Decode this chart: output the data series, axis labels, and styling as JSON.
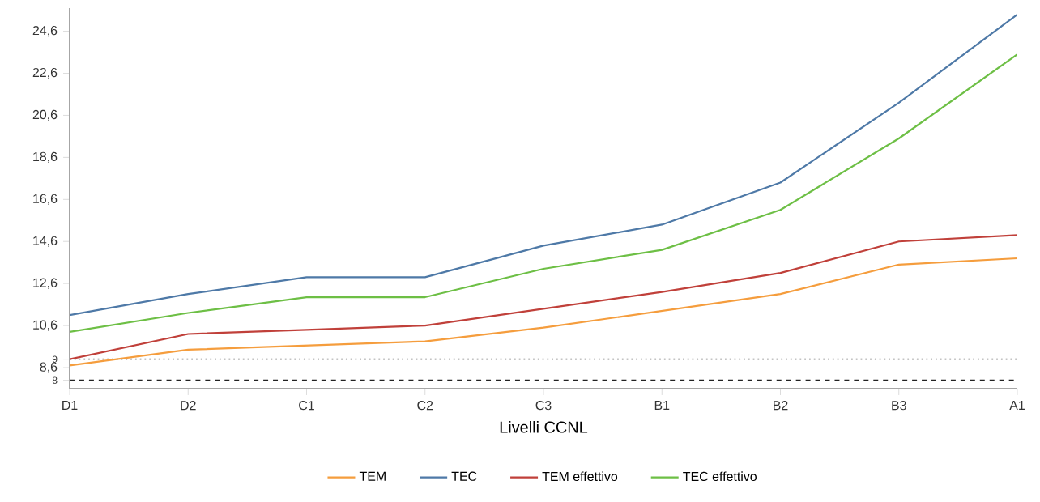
{
  "chart_data": {
    "type": "line",
    "xlabel": "Livelli CCNL",
    "categories": [
      "D1",
      "D2",
      "C1",
      "C2",
      "C3",
      "B1",
      "B2",
      "B3",
      "A1"
    ],
    "series": [
      {
        "name": "TEM",
        "color": "#f59d3d",
        "values": [
          8.7,
          9.45,
          9.65,
          9.85,
          10.5,
          11.3,
          12.1,
          13.5,
          13.8
        ]
      },
      {
        "name": "TEC",
        "color": "#4e79a7",
        "values": [
          11.1,
          12.1,
          12.9,
          12.9,
          14.4,
          15.4,
          17.4,
          21.2,
          25.4
        ]
      },
      {
        "name": "TEM effettivo",
        "color": "#c0403a",
        "values": [
          9.0,
          10.2,
          10.4,
          10.6,
          11.4,
          12.2,
          13.1,
          14.6,
          14.9
        ]
      },
      {
        "name": "TEC effettivo",
        "color": "#6dbf45",
        "values": [
          10.3,
          11.2,
          11.95,
          11.95,
          13.3,
          14.2,
          16.1,
          19.5,
          23.5
        ]
      }
    ],
    "ylim": [
      7.6,
      25.7
    ],
    "yticks": [
      {
        "value": 8,
        "label": "8"
      },
      {
        "value": 8.6,
        "label": "8,6"
      },
      {
        "value": 9,
        "label": "9"
      },
      {
        "value": 10.6,
        "label": "10,6"
      },
      {
        "value": 12.6,
        "label": "12,6"
      },
      {
        "value": 14.6,
        "label": "14,6"
      },
      {
        "value": 16.6,
        "label": "16,6"
      },
      {
        "value": 18.6,
        "label": "18,6"
      },
      {
        "value": 20.6,
        "label": "20,6"
      },
      {
        "value": 22.6,
        "label": "22,6"
      },
      {
        "value": 24.6,
        "label": "24,6"
      }
    ],
    "ref_lines": [
      {
        "axis": "y",
        "value": 8,
        "color": "#222222",
        "line_style": "dashed"
      },
      {
        "axis": "y",
        "value": 9,
        "color": "#888888",
        "line_style": "dotted"
      }
    ],
    "grid": false,
    "legend": "bottom",
    "line_style": "solid",
    "marker": "none"
  }
}
